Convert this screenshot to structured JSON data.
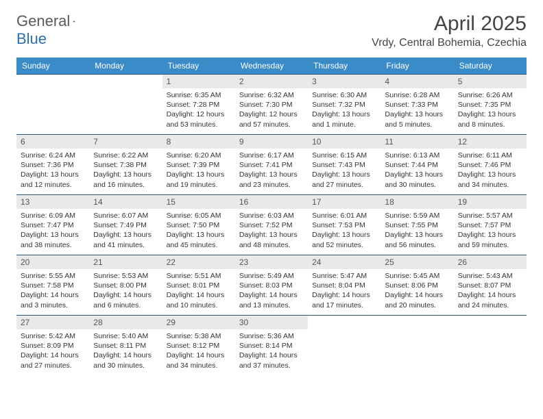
{
  "logo": {
    "part1": "General",
    "part2": "Blue"
  },
  "header": {
    "title": "April 2025",
    "location": "Vrdy, Central Bohemia, Czechia"
  },
  "colors": {
    "headerBg": "#3b8bc9",
    "headerText": "#ffffff",
    "dayNumBg": "#e9e9e9",
    "rowBorder": "#2c5a80",
    "logoAccent": "#2f6fa7"
  },
  "weekdays": [
    "Sunday",
    "Monday",
    "Tuesday",
    "Wednesday",
    "Thursday",
    "Friday",
    "Saturday"
  ],
  "weeks": [
    [
      null,
      null,
      {
        "n": "1",
        "sr": "Sunrise: 6:35 AM",
        "ss": "Sunset: 7:28 PM",
        "dl": "Daylight: 12 hours and 53 minutes."
      },
      {
        "n": "2",
        "sr": "Sunrise: 6:32 AM",
        "ss": "Sunset: 7:30 PM",
        "dl": "Daylight: 12 hours and 57 minutes."
      },
      {
        "n": "3",
        "sr": "Sunrise: 6:30 AM",
        "ss": "Sunset: 7:32 PM",
        "dl": "Daylight: 13 hours and 1 minute."
      },
      {
        "n": "4",
        "sr": "Sunrise: 6:28 AM",
        "ss": "Sunset: 7:33 PM",
        "dl": "Daylight: 13 hours and 5 minutes."
      },
      {
        "n": "5",
        "sr": "Sunrise: 6:26 AM",
        "ss": "Sunset: 7:35 PM",
        "dl": "Daylight: 13 hours and 8 minutes."
      }
    ],
    [
      {
        "n": "6",
        "sr": "Sunrise: 6:24 AM",
        "ss": "Sunset: 7:36 PM",
        "dl": "Daylight: 13 hours and 12 minutes."
      },
      {
        "n": "7",
        "sr": "Sunrise: 6:22 AM",
        "ss": "Sunset: 7:38 PM",
        "dl": "Daylight: 13 hours and 16 minutes."
      },
      {
        "n": "8",
        "sr": "Sunrise: 6:20 AM",
        "ss": "Sunset: 7:39 PM",
        "dl": "Daylight: 13 hours and 19 minutes."
      },
      {
        "n": "9",
        "sr": "Sunrise: 6:17 AM",
        "ss": "Sunset: 7:41 PM",
        "dl": "Daylight: 13 hours and 23 minutes."
      },
      {
        "n": "10",
        "sr": "Sunrise: 6:15 AM",
        "ss": "Sunset: 7:43 PM",
        "dl": "Daylight: 13 hours and 27 minutes."
      },
      {
        "n": "11",
        "sr": "Sunrise: 6:13 AM",
        "ss": "Sunset: 7:44 PM",
        "dl": "Daylight: 13 hours and 30 minutes."
      },
      {
        "n": "12",
        "sr": "Sunrise: 6:11 AM",
        "ss": "Sunset: 7:46 PM",
        "dl": "Daylight: 13 hours and 34 minutes."
      }
    ],
    [
      {
        "n": "13",
        "sr": "Sunrise: 6:09 AM",
        "ss": "Sunset: 7:47 PM",
        "dl": "Daylight: 13 hours and 38 minutes."
      },
      {
        "n": "14",
        "sr": "Sunrise: 6:07 AM",
        "ss": "Sunset: 7:49 PM",
        "dl": "Daylight: 13 hours and 41 minutes."
      },
      {
        "n": "15",
        "sr": "Sunrise: 6:05 AM",
        "ss": "Sunset: 7:50 PM",
        "dl": "Daylight: 13 hours and 45 minutes."
      },
      {
        "n": "16",
        "sr": "Sunrise: 6:03 AM",
        "ss": "Sunset: 7:52 PM",
        "dl": "Daylight: 13 hours and 48 minutes."
      },
      {
        "n": "17",
        "sr": "Sunrise: 6:01 AM",
        "ss": "Sunset: 7:53 PM",
        "dl": "Daylight: 13 hours and 52 minutes."
      },
      {
        "n": "18",
        "sr": "Sunrise: 5:59 AM",
        "ss": "Sunset: 7:55 PM",
        "dl": "Daylight: 13 hours and 56 minutes."
      },
      {
        "n": "19",
        "sr": "Sunrise: 5:57 AM",
        "ss": "Sunset: 7:57 PM",
        "dl": "Daylight: 13 hours and 59 minutes."
      }
    ],
    [
      {
        "n": "20",
        "sr": "Sunrise: 5:55 AM",
        "ss": "Sunset: 7:58 PM",
        "dl": "Daylight: 14 hours and 3 minutes."
      },
      {
        "n": "21",
        "sr": "Sunrise: 5:53 AM",
        "ss": "Sunset: 8:00 PM",
        "dl": "Daylight: 14 hours and 6 minutes."
      },
      {
        "n": "22",
        "sr": "Sunrise: 5:51 AM",
        "ss": "Sunset: 8:01 PM",
        "dl": "Daylight: 14 hours and 10 minutes."
      },
      {
        "n": "23",
        "sr": "Sunrise: 5:49 AM",
        "ss": "Sunset: 8:03 PM",
        "dl": "Daylight: 14 hours and 13 minutes."
      },
      {
        "n": "24",
        "sr": "Sunrise: 5:47 AM",
        "ss": "Sunset: 8:04 PM",
        "dl": "Daylight: 14 hours and 17 minutes."
      },
      {
        "n": "25",
        "sr": "Sunrise: 5:45 AM",
        "ss": "Sunset: 8:06 PM",
        "dl": "Daylight: 14 hours and 20 minutes."
      },
      {
        "n": "26",
        "sr": "Sunrise: 5:43 AM",
        "ss": "Sunset: 8:07 PM",
        "dl": "Daylight: 14 hours and 24 minutes."
      }
    ],
    [
      {
        "n": "27",
        "sr": "Sunrise: 5:42 AM",
        "ss": "Sunset: 8:09 PM",
        "dl": "Daylight: 14 hours and 27 minutes."
      },
      {
        "n": "28",
        "sr": "Sunrise: 5:40 AM",
        "ss": "Sunset: 8:11 PM",
        "dl": "Daylight: 14 hours and 30 minutes."
      },
      {
        "n": "29",
        "sr": "Sunrise: 5:38 AM",
        "ss": "Sunset: 8:12 PM",
        "dl": "Daylight: 14 hours and 34 minutes."
      },
      {
        "n": "30",
        "sr": "Sunrise: 5:36 AM",
        "ss": "Sunset: 8:14 PM",
        "dl": "Daylight: 14 hours and 37 minutes."
      },
      null,
      null,
      null
    ]
  ]
}
